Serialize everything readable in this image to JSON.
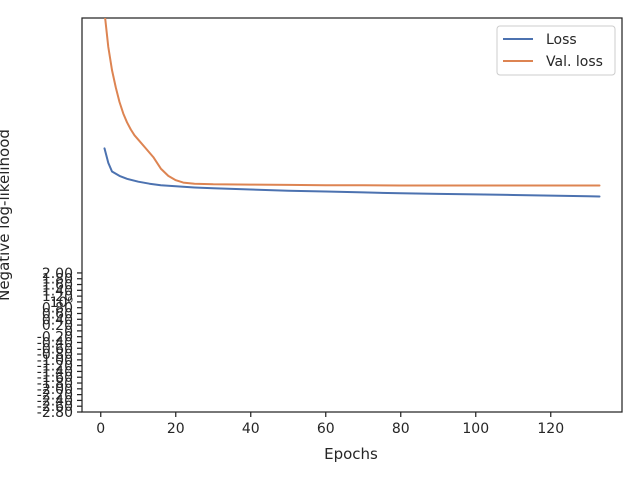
{
  "chart_data": {
    "type": "line",
    "title": "",
    "xlabel": "Epochs",
    "ylabel": "Negative log-likelihood",
    "xlim": [
      -5,
      139
    ],
    "ylim": [
      -2.8,
      10.8
    ],
    "x_ticks": [
      "0",
      "20",
      "40",
      "60",
      "80",
      "100",
      "120"
    ],
    "y_ticks": [
      "10⁰",
      "0.80",
      "0.60",
      "0.40",
      "0.20",
      "0",
      "-0.20",
      "-0.40",
      "-0.60",
      "-0.80",
      "-1.00",
      "-1.20",
      "-1.40",
      "-1.60",
      "-1.80",
      "-2.00",
      "-2.20",
      "-2.40",
      "-2.60",
      "-2.80",
      "1.20",
      "1.40",
      "1.60",
      "1.80",
      "2.00"
    ],
    "grid": false,
    "legend_position": "top-right",
    "series": [
      {
        "name": "Loss",
        "color": "#4c72b0",
        "x": [
          1,
          2,
          3,
          5,
          7,
          10,
          13,
          16,
          20,
          25,
          30,
          40,
          50,
          60,
          70,
          80,
          90,
          100,
          110,
          120,
          130,
          133
        ],
        "y": [
          6.3,
          5.8,
          5.5,
          5.35,
          5.25,
          5.15,
          5.08,
          5.03,
          4.99,
          4.95,
          4.92,
          4.88,
          4.84,
          4.81,
          4.78,
          4.75,
          4.73,
          4.71,
          4.69,
          4.67,
          4.65,
          4.64
        ]
      },
      {
        "name": "Val. loss",
        "color": "#dd8452",
        "x": [
          1,
          2,
          3,
          4,
          5,
          6,
          7,
          8,
          9,
          10,
          12,
          14,
          16,
          18,
          20,
          22,
          25,
          30,
          40,
          50,
          60,
          70,
          80,
          90,
          100,
          110,
          120,
          130,
          133
        ],
        "y": [
          11.0,
          9.8,
          9.0,
          8.4,
          7.9,
          7.5,
          7.2,
          6.95,
          6.75,
          6.6,
          6.3,
          6.0,
          5.6,
          5.35,
          5.2,
          5.12,
          5.08,
          5.06,
          5.05,
          5.04,
          5.03,
          5.03,
          5.02,
          5.02,
          5.02,
          5.02,
          5.02,
          5.02,
          5.02
        ]
      }
    ]
  }
}
